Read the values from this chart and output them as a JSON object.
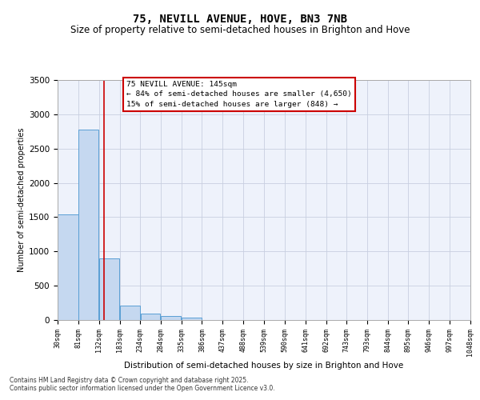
{
  "title_line1": "75, NEVILL AVENUE, HOVE, BN3 7NB",
  "title_line2": "Size of property relative to semi-detached houses in Brighton and Hove",
  "xlabel": "Distribution of semi-detached houses by size in Brighton and Hove",
  "ylabel": "Number of semi-detached properties",
  "annotation_line1": "75 NEVILL AVENUE: 145sqm",
  "annotation_line2": "← 84% of semi-detached houses are smaller (4,650)",
  "annotation_line3": "15% of semi-detached houses are larger (848) →",
  "footer_line1": "Contains HM Land Registry data © Crown copyright and database right 2025.",
  "footer_line2": "Contains public sector information licensed under the Open Government Licence v3.0.",
  "bar_edges": [
    30,
    81,
    132,
    183,
    234,
    284,
    335,
    386,
    437,
    488,
    539,
    590,
    641,
    692,
    743,
    793,
    844,
    895,
    946,
    997,
    1048
  ],
  "bar_values": [
    1540,
    2780,
    900,
    215,
    95,
    55,
    35,
    0,
    0,
    0,
    0,
    0,
    0,
    0,
    0,
    0,
    0,
    0,
    0,
    0
  ],
  "bar_color": "#c5d8f0",
  "bar_edge_color": "#5a9fd4",
  "vline_x": 145,
  "vline_color": "#cc0000",
  "ylim": [
    0,
    3500
  ],
  "yticks": [
    0,
    500,
    1000,
    1500,
    2000,
    2500,
    3000,
    3500
  ],
  "bg_color": "#eef2fb",
  "grid_color": "#c8cfe0",
  "title_fontsize": 10,
  "subtitle_fontsize": 8.5,
  "tick_labels": [
    "30sqm",
    "81sqm",
    "132sqm",
    "183sqm",
    "234sqm",
    "284sqm",
    "335sqm",
    "386sqm",
    "437sqm",
    "488sqm",
    "539sqm",
    "590sqm",
    "641sqm",
    "692sqm",
    "743sqm",
    "793sqm",
    "844sqm",
    "895sqm",
    "946sqm",
    "997sqm",
    "1048sqm"
  ]
}
